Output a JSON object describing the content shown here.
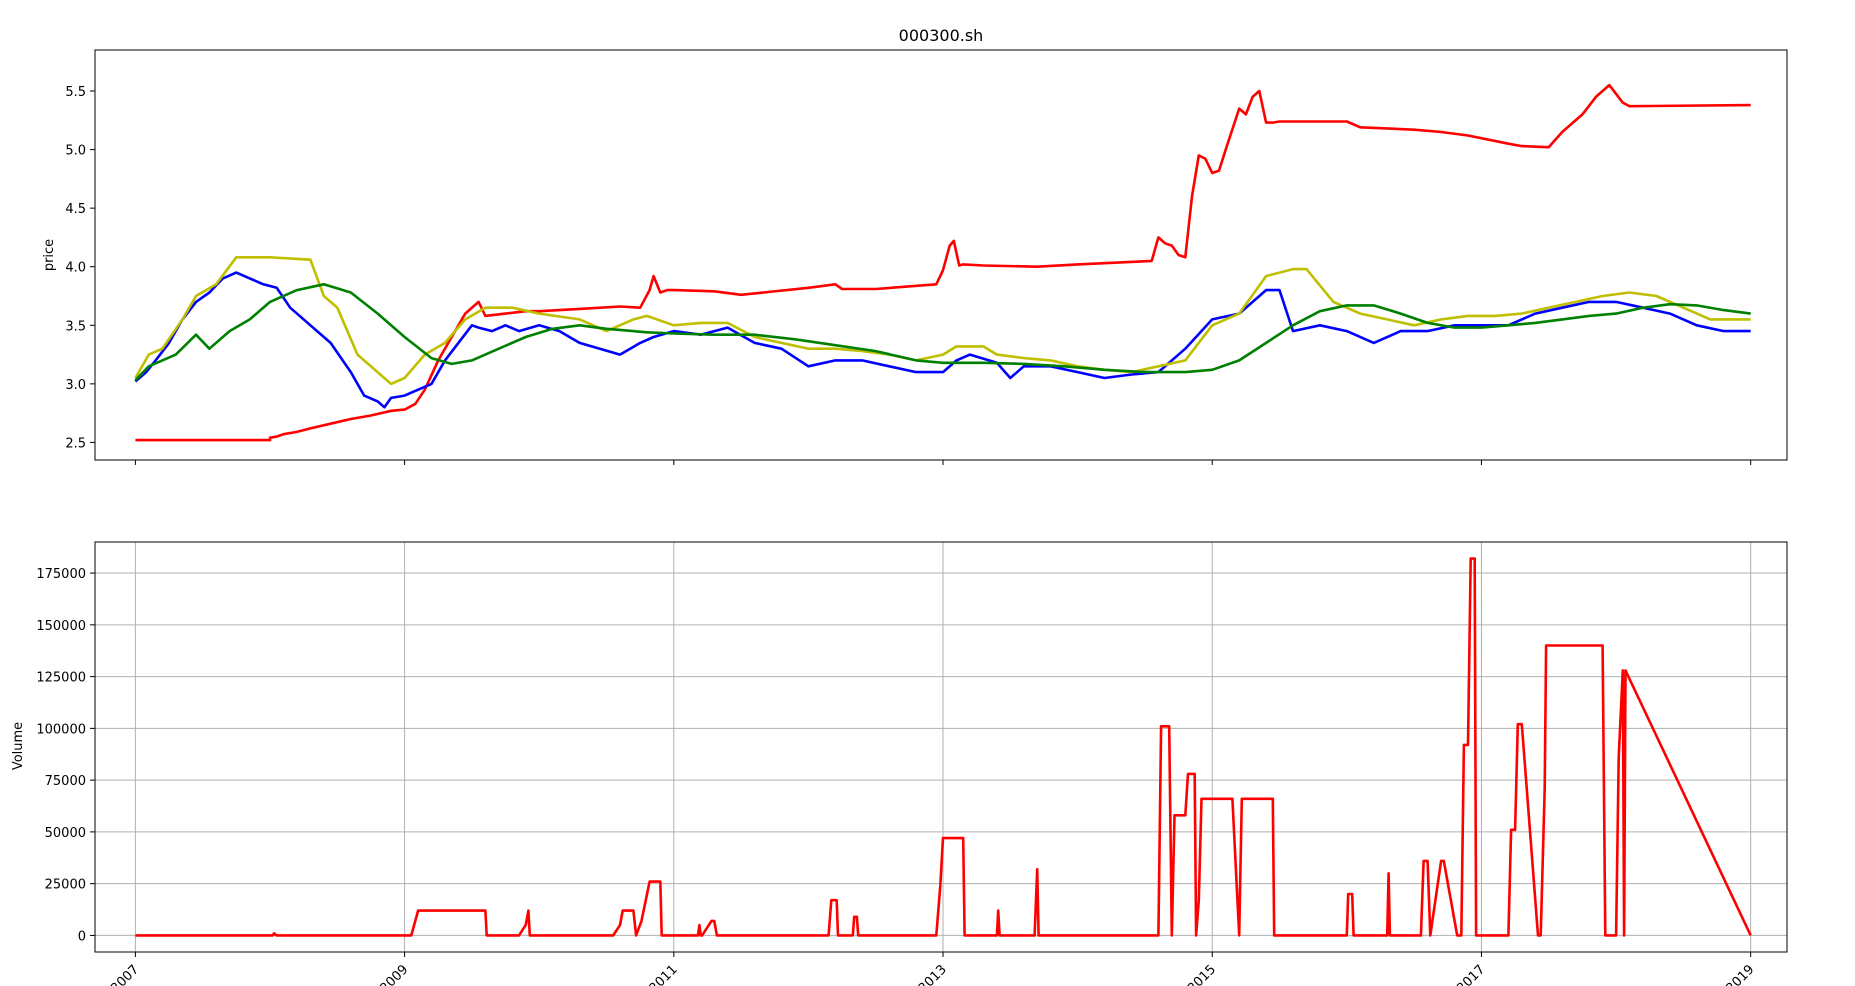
{
  "chart_data": [
    {
      "type": "line",
      "title": "000300.sh",
      "xlabel": "",
      "ylabel": "price",
      "xlim": [
        2006.7,
        2019.27
      ],
      "ylim": [
        2.35,
        5.85
      ],
      "yticks": [
        2.5,
        3.0,
        3.5,
        4.0,
        4.5,
        5.0,
        5.5
      ],
      "ytick_labels": [
        "2.5",
        "3.0",
        "3.5",
        "4.0",
        "4.5",
        "5.0",
        "5.5"
      ],
      "xticks": [
        2007,
        2009,
        2011,
        2013,
        2015,
        2017,
        2019
      ],
      "grid": false,
      "series": [
        {
          "color": "#ff0000",
          "x": [
            2007.0,
            2008.0,
            2008.0,
            2008.05,
            2008.1,
            2008.2,
            2008.3,
            2008.45,
            2008.6,
            2008.75,
            2008.9,
            2009.0,
            2009.08,
            2009.15,
            2009.25,
            2009.35,
            2009.45,
            2009.55,
            2009.6,
            2009.75,
            2009.9,
            2010.0,
            2010.3,
            2010.6,
            2010.75,
            2010.82,
            2010.85,
            2010.9,
            2010.95,
            2011.0,
            2011.3,
            2011.5,
            2012.0,
            2012.2,
            2012.25,
            2012.5,
            2012.95,
            2013.0,
            2013.05,
            2013.08,
            2013.12,
            2013.15,
            2013.3,
            2013.7,
            2014.0,
            2014.55,
            2014.6,
            2014.65,
            2014.7,
            2014.75,
            2014.8,
            2014.85,
            2014.9,
            2014.95,
            2015.0,
            2015.05,
            2015.1,
            2015.2,
            2015.25,
            2015.3,
            2015.35,
            2015.4,
            2015.45,
            2015.5,
            2016.0,
            2016.1,
            2016.5,
            2016.7,
            2016.9,
            2017.2,
            2017.3,
            2017.5,
            2017.6,
            2017.75,
            2017.85,
            2017.95,
            2018.05,
            2018.1,
            2019.0
          ],
          "values": [
            2.52,
            2.52,
            2.54,
            2.55,
            2.57,
            2.59,
            2.62,
            2.66,
            2.7,
            2.73,
            2.77,
            2.78,
            2.83,
            2.95,
            3.2,
            3.4,
            3.6,
            3.7,
            3.58,
            3.6,
            3.62,
            3.62,
            3.64,
            3.66,
            3.65,
            3.8,
            3.92,
            3.78,
            3.8,
            3.8,
            3.79,
            3.76,
            3.82,
            3.85,
            3.81,
            3.81,
            3.85,
            3.97,
            4.18,
            4.22,
            4.01,
            4.02,
            4.01,
            4.0,
            4.02,
            4.05,
            4.25,
            4.2,
            4.18,
            4.1,
            4.08,
            4.6,
            4.95,
            4.92,
            4.8,
            4.82,
            5.0,
            5.35,
            5.3,
            5.45,
            5.5,
            5.23,
            5.23,
            5.24,
            5.24,
            5.19,
            5.17,
            5.15,
            5.12,
            5.05,
            5.03,
            5.02,
            5.15,
            5.3,
            5.45,
            5.55,
            5.4,
            5.37,
            5.38
          ]
        },
        {
          "color": "#0000ff",
          "x": [
            2007.0,
            2007.08,
            2007.15,
            2007.25,
            2007.35,
            2007.45,
            2007.55,
            2007.65,
            2007.75,
            2007.85,
            2007.95,
            2008.05,
            2008.15,
            2008.3,
            2008.45,
            2008.6,
            2008.7,
            2008.8,
            2008.85,
            2008.9,
            2009.0,
            2009.1,
            2009.2,
            2009.3,
            2009.4,
            2009.5,
            2009.55,
            2009.65,
            2009.75,
            2009.85,
            2010.0,
            2010.15,
            2010.3,
            2010.45,
            2010.6,
            2010.75,
            2010.85,
            2011.0,
            2011.2,
            2011.4,
            2011.6,
            2011.8,
            2012.0,
            2012.2,
            2012.4,
            2012.6,
            2012.8,
            2013.0,
            2013.1,
            2013.2,
            2013.4,
            2013.5,
            2013.6,
            2013.8,
            2014.0,
            2014.2,
            2014.4,
            2014.6,
            2014.8,
            2015.0,
            2015.2,
            2015.4,
            2015.5,
            2015.6,
            2015.8,
            2016.0,
            2016.2,
            2016.4,
            2016.6,
            2016.8,
            2017.0,
            2017.2,
            2017.4,
            2017.6,
            2017.8,
            2018.0,
            2018.2,
            2018.4,
            2018.6,
            2018.8,
            2019.0
          ],
          "values": [
            3.02,
            3.1,
            3.2,
            3.35,
            3.55,
            3.7,
            3.78,
            3.9,
            3.95,
            3.9,
            3.85,
            3.82,
            3.65,
            3.5,
            3.35,
            3.1,
            2.9,
            2.85,
            2.8,
            2.88,
            2.9,
            2.95,
            3.0,
            3.2,
            3.35,
            3.5,
            3.48,
            3.45,
            3.5,
            3.45,
            3.5,
            3.45,
            3.35,
            3.3,
            3.25,
            3.35,
            3.4,
            3.45,
            3.42,
            3.48,
            3.35,
            3.3,
            3.15,
            3.2,
            3.2,
            3.15,
            3.1,
            3.1,
            3.2,
            3.25,
            3.18,
            3.05,
            3.15,
            3.15,
            3.1,
            3.05,
            3.08,
            3.1,
            3.3,
            3.55,
            3.6,
            3.8,
            3.8,
            3.45,
            3.5,
            3.45,
            3.35,
            3.45,
            3.45,
            3.5,
            3.5,
            3.5,
            3.6,
            3.65,
            3.7,
            3.7,
            3.65,
            3.6,
            3.5,
            3.45,
            3.45
          ]
        },
        {
          "color": "#bfbf00",
          "x": [
            2007.0,
            2007.1,
            2007.2,
            2007.35,
            2007.45,
            2007.6,
            2007.75,
            2008.0,
            2008.3,
            2008.4,
            2008.5,
            2008.65,
            2008.75,
            2008.9,
            2009.0,
            2009.15,
            2009.3,
            2009.45,
            2009.6,
            2009.8,
            2010.0,
            2010.3,
            2010.5,
            2010.7,
            2010.8,
            2011.0,
            2011.2,
            2011.4,
            2011.6,
            2011.8,
            2012.0,
            2012.2,
            2012.4,
            2012.6,
            2012.8,
            2013.0,
            2013.1,
            2013.3,
            2013.4,
            2013.6,
            2013.8,
            2014.0,
            2014.2,
            2014.4,
            2014.6,
            2014.8,
            2015.0,
            2015.2,
            2015.4,
            2015.6,
            2015.7,
            2015.9,
            2016.1,
            2016.3,
            2016.5,
            2016.7,
            2016.9,
            2017.1,
            2017.3,
            2017.5,
            2017.7,
            2017.9,
            2018.1,
            2018.3,
            2018.5,
            2018.7,
            2019.0
          ],
          "values": [
            3.05,
            3.25,
            3.3,
            3.55,
            3.75,
            3.85,
            4.08,
            4.08,
            4.06,
            3.75,
            3.65,
            3.25,
            3.15,
            3.0,
            3.05,
            3.25,
            3.35,
            3.55,
            3.65,
            3.65,
            3.6,
            3.55,
            3.45,
            3.55,
            3.58,
            3.5,
            3.52,
            3.52,
            3.4,
            3.35,
            3.3,
            3.3,
            3.28,
            3.25,
            3.2,
            3.25,
            3.32,
            3.32,
            3.25,
            3.22,
            3.2,
            3.15,
            3.12,
            3.1,
            3.15,
            3.2,
            3.5,
            3.6,
            3.92,
            3.98,
            3.98,
            3.7,
            3.6,
            3.55,
            3.5,
            3.55,
            3.58,
            3.58,
            3.6,
            3.65,
            3.7,
            3.75,
            3.78,
            3.75,
            3.65,
            3.55,
            3.55
          ]
        },
        {
          "color": "#008000",
          "x": [
            2007.0,
            2007.1,
            2007.2,
            2007.3,
            2007.45,
            2007.55,
            2007.7,
            2007.85,
            2008.0,
            2008.2,
            2008.4,
            2008.6,
            2008.8,
            2009.0,
            2009.2,
            2009.35,
            2009.5,
            2009.7,
            2009.9,
            2010.1,
            2010.3,
            2010.5,
            2010.8,
            2011.0,
            2011.3,
            2011.6,
            2011.9,
            2012.2,
            2012.5,
            2012.8,
            2013.0,
            2013.3,
            2013.6,
            2013.9,
            2014.2,
            2014.5,
            2014.8,
            2015.0,
            2015.2,
            2015.4,
            2015.6,
            2015.8,
            2016.0,
            2016.2,
            2016.4,
            2016.6,
            2016.8,
            2017.0,
            2017.2,
            2017.4,
            2017.6,
            2017.8,
            2018.0,
            2018.2,
            2018.4,
            2018.6,
            2018.8,
            2019.0
          ],
          "values": [
            3.03,
            3.15,
            3.2,
            3.25,
            3.42,
            3.3,
            3.45,
            3.55,
            3.7,
            3.8,
            3.85,
            3.78,
            3.6,
            3.4,
            3.22,
            3.17,
            3.2,
            3.3,
            3.4,
            3.47,
            3.5,
            3.47,
            3.44,
            3.43,
            3.42,
            3.42,
            3.38,
            3.33,
            3.28,
            3.2,
            3.18,
            3.18,
            3.17,
            3.15,
            3.12,
            3.1,
            3.1,
            3.12,
            3.2,
            3.35,
            3.5,
            3.62,
            3.67,
            3.67,
            3.6,
            3.52,
            3.48,
            3.48,
            3.5,
            3.52,
            3.55,
            3.58,
            3.6,
            3.65,
            3.68,
            3.67,
            3.63,
            3.6
          ]
        }
      ]
    },
    {
      "type": "line",
      "title": "",
      "xlabel": "",
      "ylabel": "Volume",
      "xlim": [
        2006.7,
        2019.27
      ],
      "ylim": [
        -8000,
        190000
      ],
      "yticks": [
        0,
        25000,
        50000,
        75000,
        100000,
        125000,
        150000,
        175000
      ],
      "ytick_labels": [
        "0",
        "25000",
        "50000",
        "75000",
        "100000",
        "125000",
        "150000",
        "175000"
      ],
      "xticks": [
        2007,
        2009,
        2011,
        2013,
        2015,
        2017,
        2019
      ],
      "xtick_labels": [
        "2007",
        "2009",
        "2011",
        "2013",
        "2015",
        "2017",
        "2019"
      ],
      "grid": true,
      "series": [
        {
          "color": "#ff0000",
          "x": [
            2007.0,
            2008.02,
            2008.03,
            2008.05,
            2009.05,
            2009.1,
            2009.6,
            2009.61,
            2009.85,
            2009.9,
            2009.92,
            2009.93,
            2010.55,
            2010.6,
            2010.62,
            2010.7,
            2010.72,
            2010.76,
            2010.82,
            2010.9,
            2010.91,
            2011.18,
            2011.19,
            2011.2,
            2011.21,
            2011.28,
            2011.3,
            2011.32,
            2011.33,
            2012.15,
            2012.17,
            2012.21,
            2012.22,
            2012.33,
            2012.34,
            2012.36,
            2012.37,
            2012.95,
            2012.98,
            2013.0,
            2013.15,
            2013.16,
            2013.4,
            2013.41,
            2013.42,
            2013.68,
            2013.7,
            2013.71,
            2014.6,
            2014.62,
            2014.68,
            2014.7,
            2014.72,
            2014.8,
            2014.82,
            2014.87,
            2014.88,
            2014.9,
            2014.92,
            2015.15,
            2015.2,
            2015.22,
            2015.45,
            2015.46,
            2016.0,
            2016.01,
            2016.04,
            2016.05,
            2016.3,
            2016.31,
            2016.32,
            2016.55,
            2016.57,
            2016.6,
            2016.62,
            2016.7,
            2016.72,
            2016.82,
            2016.85,
            2016.87,
            2016.9,
            2016.92,
            2016.95,
            2016.96,
            2017.2,
            2017.22,
            2017.25,
            2017.27,
            2017.3,
            2017.42,
            2017.44,
            2017.47,
            2017.48,
            2017.9,
            2017.92,
            2018.0,
            2018.02,
            2018.05,
            2018.06,
            2018.07,
            2019.0
          ],
          "values": [
            0,
            0,
            1000,
            0,
            0,
            12000,
            12000,
            0,
            0,
            5000,
            12000,
            0,
            0,
            5000,
            12000,
            12000,
            0,
            7000,
            26000,
            26000,
            0,
            0,
            5000,
            0,
            0,
            7000,
            7000,
            0,
            0,
            0,
            17000,
            17000,
            0,
            0,
            9000,
            9000,
            0,
            0,
            24000,
            47000,
            47000,
            0,
            0,
            12000,
            0,
            0,
            32000,
            0,
            0,
            101000,
            101000,
            0,
            58000,
            58000,
            78000,
            78000,
            0,
            17000,
            66000,
            66000,
            0,
            66000,
            66000,
            0,
            0,
            20000,
            20000,
            0,
            0,
            30000,
            0,
            0,
            36000,
            36000,
            0,
            36000,
            36000,
            0,
            0,
            92000,
            92000,
            182000,
            182000,
            0,
            0,
            51000,
            51000,
            102000,
            102000,
            0,
            0,
            71000,
            140000,
            140000,
            0,
            0,
            86000,
            128000,
            0,
            128000,
            0
          ]
        }
      ]
    }
  ]
}
